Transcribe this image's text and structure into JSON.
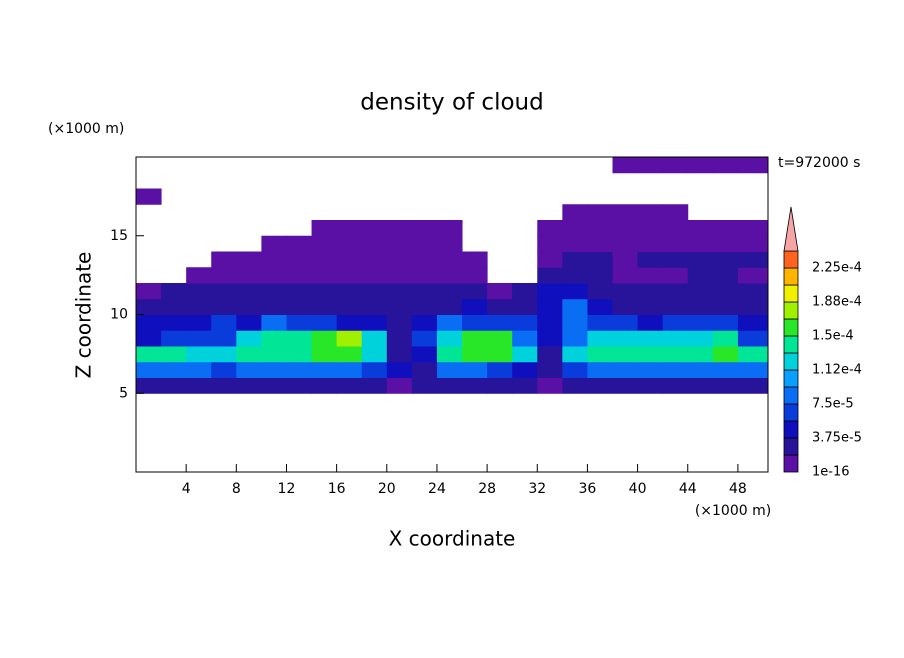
{
  "chart_data": {
    "type": "contour",
    "title": "density of cloud",
    "time_label": "t=972000 s",
    "xlabel": "X coordinate",
    "ylabel": "Z coordinate",
    "xunit": "(×1000 m)",
    "yunit": "(×1000 m)",
    "xlim": [
      0,
      50.4
    ],
    "ylim": [
      0,
      20
    ],
    "xticks": [
      4,
      8,
      12,
      16,
      20,
      24,
      28,
      32,
      36,
      40,
      44,
      48
    ],
    "yticks": [
      5,
      10,
      15
    ],
    "xbins": [
      0,
      2,
      4,
      6,
      8,
      10,
      12,
      14,
      16,
      18,
      20,
      22,
      24,
      26,
      28,
      30,
      32,
      34,
      36,
      38,
      40,
      42,
      44,
      46,
      48,
      50.4
    ],
    "ybins": [
      0,
      1,
      2,
      3,
      4,
      5,
      6,
      7,
      8,
      9,
      10,
      11,
      12,
      13,
      14,
      15,
      16,
      17,
      18,
      19,
      20
    ],
    "levels": [
      {
        "value": 1e-16,
        "label": "1e-16"
      },
      1.875e-05,
      {
        "value": 3.75e-05,
        "label": "3.75e-5"
      },
      5.625e-05,
      {
        "value": 7.5e-05,
        "label": "7.5e-5"
      },
      9.375e-05,
      {
        "value": 0.0001125,
        "label": "1.12e-4"
      },
      0.00013125,
      {
        "value": 0.00015,
        "label": "1.5e-4"
      },
      0.00016875,
      {
        "value": 0.0001875,
        "label": "1.88e-4"
      },
      0.00020625,
      {
        "value": 0.000225,
        "label": "2.25e-4"
      },
      0.00024375
    ],
    "colors": [
      "#5a0fa5",
      "#28149b",
      "#0f0fbe",
      "#0a3cdc",
      "#0a6ef5",
      "#0aa0ff",
      "#00d2dc",
      "#00e696",
      "#28e628",
      "#a0f000",
      "#f0f000",
      "#ffb400",
      "#ff641e"
    ],
    "extend_color": "#f5a5a5",
    "values": [
      [
        null,
        null,
        null,
        null,
        null,
        null,
        null,
        null,
        null,
        null,
        null,
        null,
        null,
        null,
        null,
        null,
        null,
        null,
        null,
        null,
        null,
        null,
        null,
        null,
        null
      ],
      [
        null,
        null,
        null,
        null,
        null,
        null,
        null,
        null,
        null,
        null,
        null,
        null,
        null,
        null,
        null,
        null,
        null,
        null,
        null,
        null,
        null,
        null,
        null,
        null,
        null
      ],
      [
        null,
        null,
        null,
        null,
        null,
        null,
        null,
        null,
        null,
        null,
        null,
        null,
        null,
        null,
        null,
        null,
        null,
        null,
        null,
        null,
        null,
        null,
        null,
        null,
        null
      ],
      [
        null,
        null,
        null,
        null,
        null,
        null,
        null,
        null,
        null,
        null,
        null,
        null,
        null,
        null,
        null,
        null,
        null,
        null,
        null,
        null,
        null,
        null,
        null,
        null,
        null
      ],
      [
        null,
        null,
        null,
        null,
        null,
        null,
        null,
        null,
        null,
        null,
        null,
        null,
        null,
        null,
        null,
        null,
        null,
        null,
        null,
        null,
        null,
        null,
        null,
        null,
        null
      ],
      [
        3e-05,
        3e-05,
        3e-05,
        3e-05,
        3e-05,
        3e-05,
        3e-05,
        3e-05,
        3e-05,
        3e-05,
        1e-05,
        3e-05,
        3e-05,
        3e-05,
        3e-05,
        3e-05,
        1e-05,
        3e-05,
        3e-05,
        3e-05,
        3e-05,
        3e-05,
        3e-05,
        3e-05,
        3e-05
      ],
      [
        9e-05,
        9e-05,
        9e-05,
        7e-05,
        9e-05,
        9e-05,
        9e-05,
        9e-05,
        9e-05,
        7e-05,
        5e-05,
        3e-05,
        9e-05,
        9e-05,
        7e-05,
        5e-05,
        3e-05,
        7e-05,
        9e-05,
        9e-05,
        9e-05,
        9e-05,
        9e-05,
        9e-05,
        9e-05
      ],
      [
        0.00014,
        0.00014,
        0.00012,
        0.00012,
        0.00014,
        0.00014,
        0.00014,
        0.00016,
        0.00016,
        0.00012,
        3e-05,
        5e-05,
        0.00014,
        0.00016,
        0.00016,
        0.00012,
        3e-05,
        0.00012,
        0.00014,
        0.00014,
        0.00014,
        0.00014,
        0.00014,
        0.00016,
        0.00014
      ],
      [
        5e-05,
        7e-05,
        7e-05,
        7e-05,
        0.00012,
        0.00014,
        0.00014,
        0.00016,
        0.00018,
        0.00012,
        3e-05,
        7e-05,
        0.00012,
        0.00016,
        0.00016,
        9e-05,
        5e-05,
        9e-05,
        0.00012,
        0.00012,
        0.00012,
        0.00012,
        0.00012,
        0.00014,
        7e-05
      ],
      [
        5e-05,
        5e-05,
        5e-05,
        7e-05,
        5e-05,
        9e-05,
        7e-05,
        7e-05,
        5e-05,
        5e-05,
        3e-05,
        5e-05,
        9e-05,
        7e-05,
        7e-05,
        7e-05,
        5e-05,
        9e-05,
        7e-05,
        7e-05,
        5e-05,
        7e-05,
        7e-05,
        7e-05,
        5e-05
      ],
      [
        3e-05,
        3e-05,
        3e-05,
        3e-05,
        3e-05,
        3e-05,
        3e-05,
        3e-05,
        3e-05,
        3e-05,
        3e-05,
        3e-05,
        3e-05,
        5e-05,
        3e-05,
        3e-05,
        5e-05,
        9e-05,
        5e-05,
        3e-05,
        3e-05,
        3e-05,
        3e-05,
        3e-05,
        3e-05
      ],
      [
        1e-05,
        3e-05,
        3e-05,
        3e-05,
        3e-05,
        3e-05,
        3e-05,
        3e-05,
        3e-05,
        3e-05,
        3e-05,
        3e-05,
        3e-05,
        3e-05,
        1e-05,
        3e-05,
        5e-05,
        5e-05,
        3e-05,
        3e-05,
        3e-05,
        3e-05,
        3e-05,
        3e-05,
        3e-05
      ],
      [
        null,
        null,
        1e-05,
        1e-05,
        1e-05,
        1e-05,
        1e-05,
        1e-05,
        1e-05,
        1e-05,
        1e-05,
        1e-05,
        1e-05,
        1e-05,
        null,
        null,
        3e-05,
        3e-05,
        3e-05,
        1e-05,
        1e-05,
        1e-05,
        3e-05,
        3e-05,
        1e-05
      ],
      [
        null,
        null,
        null,
        1e-05,
        1e-05,
        1e-05,
        1e-05,
        1e-05,
        1e-05,
        1e-05,
        1e-05,
        1e-05,
        1e-05,
        1e-05,
        null,
        null,
        1e-05,
        3e-05,
        3e-05,
        1e-05,
        3e-05,
        3e-05,
        3e-05,
        3e-05,
        3e-05
      ],
      [
        null,
        null,
        null,
        null,
        null,
        1e-05,
        1e-05,
        1e-05,
        1e-05,
        1e-05,
        1e-05,
        1e-05,
        1e-05,
        null,
        null,
        null,
        1e-05,
        1e-05,
        1e-05,
        1e-05,
        1e-05,
        1e-05,
        1e-05,
        1e-05,
        1e-05
      ],
      [
        null,
        null,
        null,
        null,
        null,
        null,
        null,
        1e-05,
        1e-05,
        1e-05,
        1e-05,
        1e-05,
        1e-05,
        null,
        null,
        null,
        1e-05,
        1e-05,
        1e-05,
        1e-05,
        1e-05,
        1e-05,
        1e-05,
        1e-05,
        1e-05
      ],
      [
        null,
        null,
        null,
        null,
        null,
        null,
        null,
        null,
        null,
        null,
        null,
        null,
        null,
        null,
        null,
        null,
        null,
        1e-05,
        1e-05,
        1e-05,
        1e-05,
        1e-05,
        null,
        null,
        null
      ],
      [
        1e-05,
        null,
        null,
        null,
        null,
        null,
        null,
        null,
        null,
        null,
        null,
        null,
        null,
        null,
        null,
        null,
        null,
        null,
        null,
        null,
        null,
        null,
        null,
        null,
        null
      ],
      [
        null,
        null,
        null,
        null,
        null,
        null,
        null,
        null,
        null,
        null,
        null,
        null,
        null,
        null,
        null,
        null,
        null,
        null,
        null,
        null,
        null,
        null,
        null,
        null,
        null
      ],
      [
        null,
        null,
        null,
        null,
        null,
        null,
        null,
        null,
        null,
        null,
        null,
        null,
        null,
        null,
        null,
        null,
        null,
        null,
        null,
        1e-05,
        1e-05,
        1e-05,
        1e-05,
        1e-05,
        1e-05
      ]
    ]
  }
}
